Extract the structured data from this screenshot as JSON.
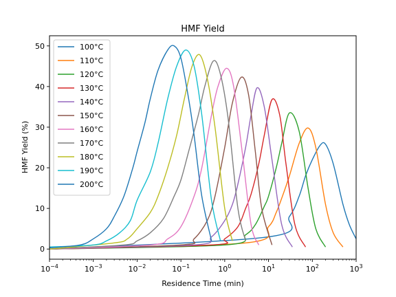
{
  "chart_data": {
    "type": "line",
    "title": "HMF Yield",
    "xlabel": "Residence Time (min)",
    "ylabel": "HMF Yield (%)",
    "xscale": "log",
    "xlim": [
      0.0001,
      1000
    ],
    "ylim": [
      -2.5,
      52.5
    ],
    "grid": false,
    "legend_position": "top-left",
    "x_ticks": [
      {
        "value": 0.0001,
        "base": "10",
        "exp": "−4"
      },
      {
        "value": 0.001,
        "base": "10",
        "exp": "−3"
      },
      {
        "value": 0.01,
        "base": "10",
        "exp": "−2"
      },
      {
        "value": 0.1,
        "base": "10",
        "exp": "−1"
      },
      {
        "value": 1,
        "base": "10",
        "exp": "0"
      },
      {
        "value": 10,
        "base": "10",
        "exp": "1"
      },
      {
        "value": 100,
        "base": "10",
        "exp": "2"
      },
      {
        "value": 1000,
        "base": "10",
        "exp": "3"
      }
    ],
    "y_ticks": [
      0,
      10,
      20,
      30,
      40,
      50
    ],
    "series": [
      {
        "name": "100°C",
        "color": "#1f77b4",
        "x": [
          0.0001,
          10,
          30,
          50,
          70,
          100,
          150,
          200,
          300,
          500,
          700,
          1000
        ],
        "y": [
          0,
          3,
          8,
          13,
          18,
          22,
          25.5,
          25.8,
          21,
          11,
          6,
          2.5
        ]
      },
      {
        "name": "110°C",
        "color": "#ff7f0e",
        "x": [
          0.0001,
          3,
          10,
          15,
          20,
          30,
          50,
          80,
          120,
          200,
          300,
          500
        ],
        "y": [
          0,
          1.5,
          5.5,
          9,
          12.5,
          18,
          26,
          29.8,
          25,
          11,
          4,
          0.5
        ]
      },
      {
        "name": "120°C",
        "color": "#2ca02c",
        "x": [
          0.0001,
          1,
          3,
          5,
          8,
          10,
          15,
          20,
          30,
          50,
          80,
          120,
          200
        ],
        "y": [
          0,
          1,
          3.5,
          6,
          10.5,
          13,
          20,
          26,
          33.5,
          29,
          15,
          5,
          0.5
        ]
      },
      {
        "name": "130°C",
        "color": "#d62728",
        "x": [
          0.0001,
          0.5,
          1,
          2,
          3,
          4,
          6,
          8,
          12,
          18,
          25,
          40,
          70
        ],
        "y": [
          0,
          1,
          2.5,
          5.5,
          10,
          13.5,
          21,
          28,
          36.8,
          33,
          21,
          6,
          0.5
        ]
      },
      {
        "name": "140°C",
        "color": "#9467bd",
        "x": [
          0.0001,
          0.2,
          0.5,
          1,
          1.5,
          2,
          3,
          4,
          5.5,
          8,
          12,
          20,
          35
        ],
        "y": [
          0,
          1,
          3,
          7,
          11,
          16,
          25,
          33,
          39.7,
          35,
          22,
          6,
          0.5
        ]
      },
      {
        "name": "150°C",
        "color": "#8c564b",
        "x": [
          0.0001,
          0.1,
          0.2,
          0.4,
          0.6,
          1,
          1.5,
          2.4,
          3.5,
          5,
          7,
          12
        ],
        "y": [
          0,
          1,
          2.5,
          7,
          13,
          25,
          36,
          42.3,
          38,
          24,
          10,
          1
        ]
      },
      {
        "name": "160°C",
        "color": "#e377c2",
        "x": [
          0.0001,
          0.02,
          0.05,
          0.1,
          0.2,
          0.3,
          0.5,
          0.7,
          1.1,
          1.6,
          2.5,
          4,
          6
        ],
        "y": [
          0,
          1,
          2.5,
          5.5,
          13,
          20,
          33,
          40,
          44.5,
          40,
          24,
          6,
          1
        ]
      },
      {
        "name": "170°C",
        "color": "#7f7f7f",
        "x": [
          0.0001,
          0.005,
          0.01,
          0.02,
          0.04,
          0.07,
          0.1,
          0.15,
          0.25,
          0.35,
          0.55,
          0.8,
          1.2,
          2,
          3
        ],
        "y": [
          0,
          1,
          2,
          4,
          7.5,
          13,
          17,
          24,
          33,
          40,
          46.3,
          43,
          32,
          10,
          2
        ]
      },
      {
        "name": "180°C",
        "color": "#bcbd22",
        "x": [
          0.0001,
          0.003,
          0.006,
          0.01,
          0.02,
          0.03,
          0.05,
          0.08,
          0.12,
          0.18,
          0.27,
          0.4,
          0.6,
          1,
          1.5
        ],
        "y": [
          0,
          1.5,
          2.5,
          5,
          9,
          13,
          20,
          28,
          37,
          45,
          47.8,
          42,
          30,
          10,
          2
        ]
      },
      {
        "name": "190°C",
        "color": "#17becf",
        "x": [
          0.0001,
          0.001,
          0.002,
          0.004,
          0.007,
          0.01,
          0.02,
          0.03,
          0.05,
          0.08,
          0.13,
          0.2,
          0.3,
          0.5,
          0.8
        ],
        "y": [
          0.5,
          1,
          2,
          4,
          7,
          12,
          19,
          26,
          37,
          45,
          49,
          45,
          33,
          12,
          2
        ]
      },
      {
        "name": "200°C",
        "color": "#1f77b4",
        "x": [
          0.0001,
          0.0005,
          0.001,
          0.002,
          0.003,
          0.005,
          0.008,
          0.01,
          0.015,
          0.02,
          0.03,
          0.05,
          0.07,
          0.1,
          0.15,
          0.2,
          0.3,
          0.5
        ],
        "y": [
          0.3,
          1,
          2.5,
          5,
          8,
          13,
          20,
          24,
          31,
          37,
          44,
          49,
          50,
          47,
          37,
          28,
          13,
          2
        ]
      }
    ]
  }
}
